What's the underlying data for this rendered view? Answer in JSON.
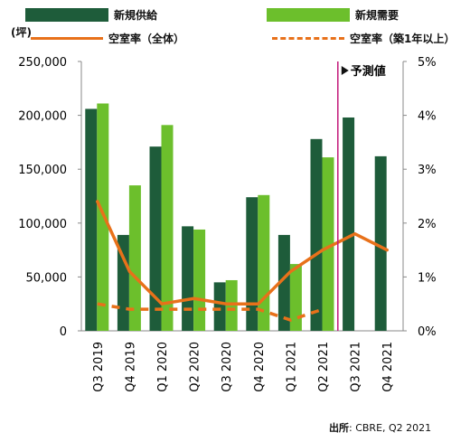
{
  "chart_data": {
    "type": "bar",
    "categories": [
      "Q3 2019",
      "Q4 2019",
      "Q1 2020",
      "Q2 2020",
      "Q3 2020",
      "Q4 2020",
      "Q1 2021",
      "Q2 2021",
      "Q3 2021",
      "Q4 2021"
    ],
    "series": [
      {
        "name": "新規供給",
        "type": "bar",
        "axis": "left",
        "color": "#1e5c3a",
        "values": [
          206000,
          89000,
          171000,
          97000,
          45000,
          124000,
          89000,
          178000,
          198000,
          162000
        ]
      },
      {
        "name": "新規需要",
        "type": "bar",
        "axis": "left",
        "color": "#6cbf2c",
        "values": [
          211000,
          135000,
          191000,
          94000,
          47000,
          126000,
          62000,
          161000,
          null,
          null
        ]
      },
      {
        "name": "空室率（全体）",
        "type": "line",
        "axis": "right",
        "style": "solid",
        "color": "#e8711a",
        "values": [
          2.4,
          1.1,
          0.5,
          0.6,
          0.5,
          0.5,
          1.1,
          1.5,
          1.8,
          1.5
        ]
      },
      {
        "name": "空室率（築1年以上）",
        "type": "line",
        "axis": "right",
        "style": "dashed",
        "color": "#e8711a",
        "values": [
          0.5,
          0.4,
          0.4,
          0.4,
          0.4,
          0.4,
          0.2,
          0.4,
          null,
          null
        ]
      }
    ],
    "ylabel": "(坪)",
    "ylim": [
      0,
      250000
    ],
    "yticks": [
      "0",
      "50,000",
      "100,000",
      "150,000",
      "200,000",
      "250,000"
    ],
    "y2lim": [
      0,
      5
    ],
    "y2ticks": [
      "0%",
      "1%",
      "2%",
      "3%",
      "4%",
      "5%"
    ],
    "forecast_marker": {
      "after_category": "Q2 2021",
      "label": "予測値",
      "color": "#c2187a"
    },
    "grid": false,
    "legend_position": "top"
  },
  "source": {
    "title": "出所",
    "text": ": CBRE, Q2 2021"
  }
}
